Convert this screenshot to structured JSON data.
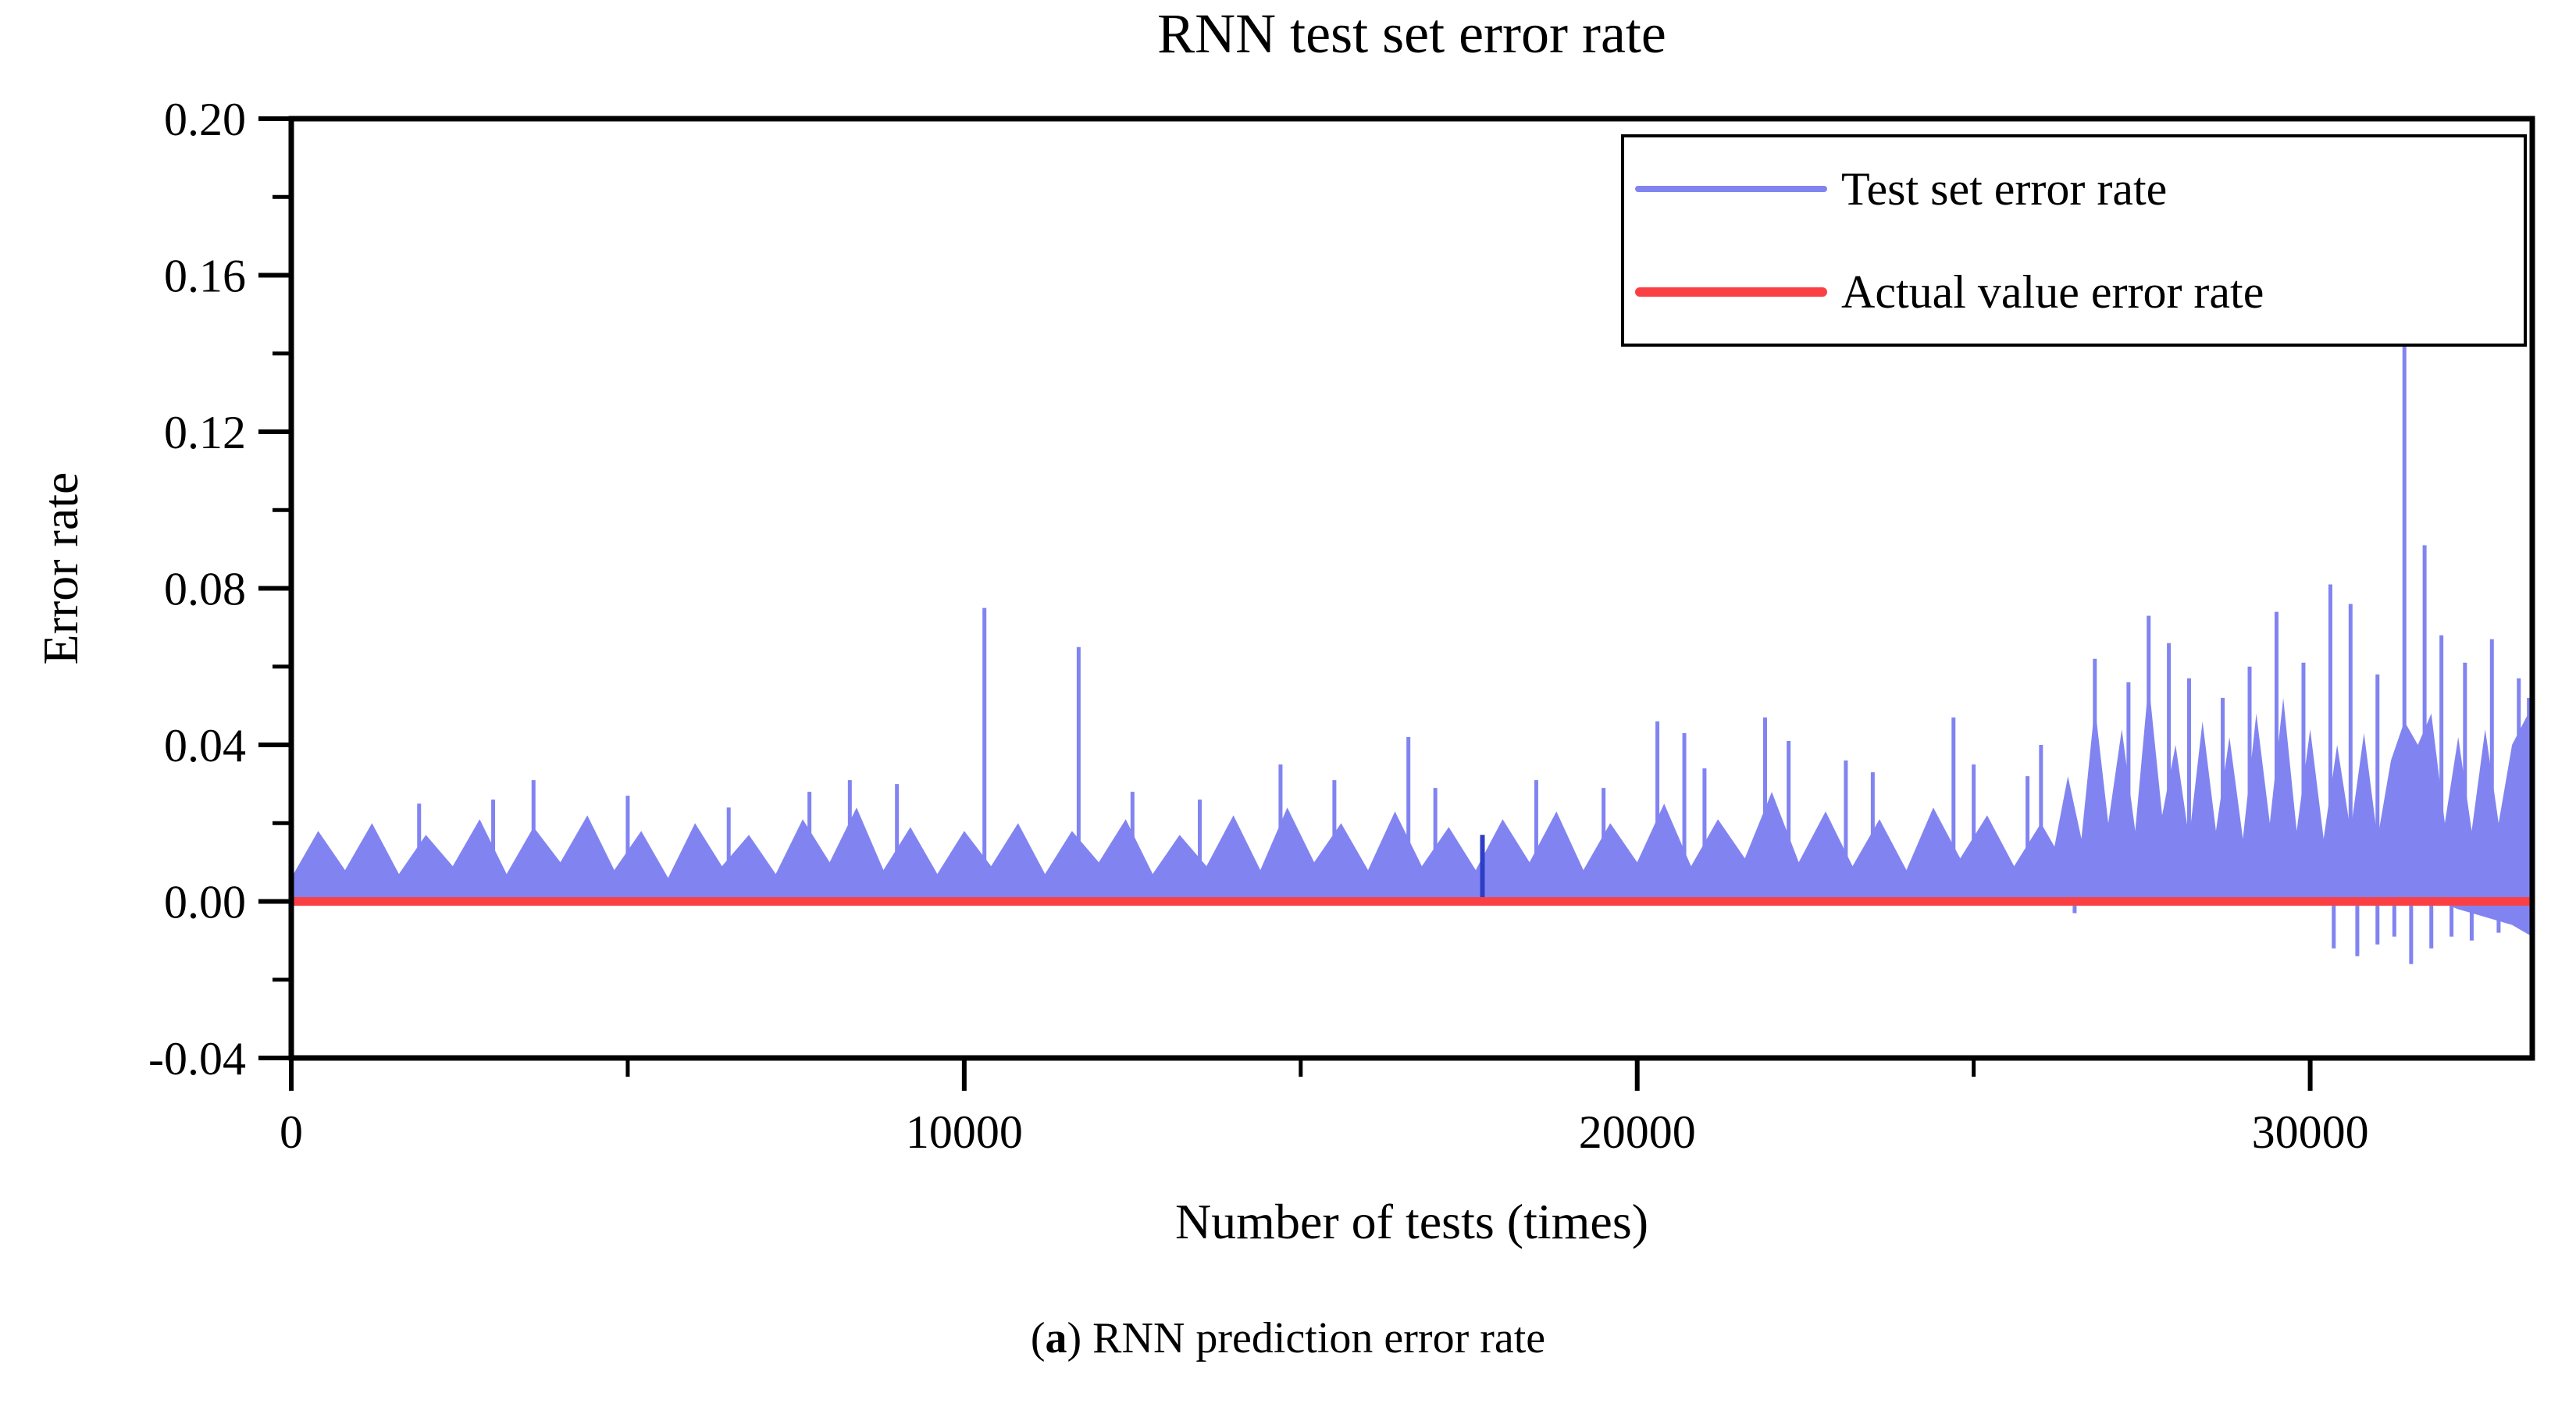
{
  "figure": {
    "title": "RNN test set error rate",
    "x_axis_label": "Number of tests (times)",
    "y_axis_label": "Error rate",
    "caption": {
      "prefix": "(",
      "letter": "a",
      "rest": ") RNN prediction error rate"
    }
  },
  "legend": {
    "position": "top-right",
    "items": [
      {
        "label": "Test set error rate",
        "color": "#8184f0",
        "line_thickness": 8
      },
      {
        "label": "Actual value error rate",
        "color": "#fb4045",
        "line_thickness": 12
      }
    ]
  },
  "colors": {
    "axis": "#000000",
    "background": "#ffffff",
    "test_series_blue": "#8184f0",
    "dark_spike_blue": "#2e3ec6",
    "actual_red": "#fb4045"
  },
  "chart_data": {
    "type": "line",
    "title": "RNN test set error rate",
    "xlabel": "Number of tests (times)",
    "ylabel": "Error rate",
    "xlim": [
      0,
      33300
    ],
    "ylim": [
      -0.04,
      0.2
    ],
    "grid": false,
    "legend_position": "top-right",
    "xticks": [
      {
        "v": 0,
        "label": "0"
      },
      {
        "v": 10000,
        "label": "10000"
      },
      {
        "v": 20000,
        "label": "20000"
      },
      {
        "v": 30000,
        "label": "30000"
      }
    ],
    "xticks_minor": [
      5000,
      15000,
      25000
    ],
    "yticks": [
      {
        "v": 0.2,
        "label": "0.20"
      },
      {
        "v": 0.16,
        "label": "0.16"
      },
      {
        "v": 0.12,
        "label": "0.12"
      },
      {
        "v": 0.08,
        "label": "0.08"
      },
      {
        "v": 0.04,
        "label": "0.04"
      },
      {
        "v": 0.0,
        "label": "0.00"
      },
      {
        "v": -0.04,
        "label": "-0.04"
      }
    ],
    "yticks_minor": [
      0.18,
      0.14,
      0.1,
      0.06,
      0.02,
      -0.02
    ],
    "series": [
      {
        "name": "Test set error rate",
        "color": "#8184f0",
        "line_width": 5,
        "representation": "envelope of ~33000-point noisy error-rate line; mostly 0.005-0.03, rising variance after 26000, max spike ~0.15 near 31400, small negative dips near right end",
        "upper_envelope": [
          [
            0,
            0.006
          ],
          [
            400,
            0.018
          ],
          [
            800,
            0.008
          ],
          [
            1200,
            0.02
          ],
          [
            1600,
            0.007
          ],
          [
            2000,
            0.017
          ],
          [
            2400,
            0.009
          ],
          [
            2800,
            0.021
          ],
          [
            3200,
            0.007
          ],
          [
            3600,
            0.019
          ],
          [
            4000,
            0.01
          ],
          [
            4400,
            0.022
          ],
          [
            4800,
            0.008
          ],
          [
            5200,
            0.018
          ],
          [
            5600,
            0.006
          ],
          [
            6000,
            0.02
          ],
          [
            6400,
            0.009
          ],
          [
            6800,
            0.017
          ],
          [
            7200,
            0.007
          ],
          [
            7600,
            0.021
          ],
          [
            8000,
            0.01
          ],
          [
            8400,
            0.024
          ],
          [
            8800,
            0.008
          ],
          [
            9200,
            0.019
          ],
          [
            9600,
            0.007
          ],
          [
            10000,
            0.018
          ],
          [
            10400,
            0.009
          ],
          [
            10800,
            0.02
          ],
          [
            11200,
            0.007
          ],
          [
            11600,
            0.018
          ],
          [
            12000,
            0.01
          ],
          [
            12400,
            0.021
          ],
          [
            12800,
            0.007
          ],
          [
            13200,
            0.017
          ],
          [
            13600,
            0.009
          ],
          [
            14000,
            0.022
          ],
          [
            14400,
            0.008
          ],
          [
            14800,
            0.024
          ],
          [
            15200,
            0.01
          ],
          [
            15600,
            0.02
          ],
          [
            16000,
            0.008
          ],
          [
            16400,
            0.023
          ],
          [
            16800,
            0.009
          ],
          [
            17200,
            0.019
          ],
          [
            17600,
            0.008
          ],
          [
            18000,
            0.021
          ],
          [
            18400,
            0.01
          ],
          [
            18800,
            0.023
          ],
          [
            19200,
            0.008
          ],
          [
            19600,
            0.02
          ],
          [
            20000,
            0.01
          ],
          [
            20400,
            0.025
          ],
          [
            20800,
            0.009
          ],
          [
            21200,
            0.021
          ],
          [
            21600,
            0.011
          ],
          [
            22000,
            0.028
          ],
          [
            22400,
            0.01
          ],
          [
            22800,
            0.023
          ],
          [
            23200,
            0.009
          ],
          [
            23600,
            0.021
          ],
          [
            24000,
            0.008
          ],
          [
            24400,
            0.024
          ],
          [
            24800,
            0.011
          ],
          [
            25200,
            0.022
          ],
          [
            25600,
            0.009
          ],
          [
            26000,
            0.02
          ],
          [
            26200,
            0.014
          ],
          [
            26400,
            0.032
          ],
          [
            26600,
            0.016
          ],
          [
            26800,
            0.05
          ],
          [
            27000,
            0.02
          ],
          [
            27200,
            0.044
          ],
          [
            27400,
            0.018
          ],
          [
            27600,
            0.056
          ],
          [
            27800,
            0.022
          ],
          [
            28000,
            0.04
          ],
          [
            28200,
            0.016
          ],
          [
            28400,
            0.046
          ],
          [
            28600,
            0.018
          ],
          [
            28800,
            0.042
          ],
          [
            29000,
            0.016
          ],
          [
            29200,
            0.048
          ],
          [
            29400,
            0.02
          ],
          [
            29600,
            0.052
          ],
          [
            29800,
            0.018
          ],
          [
            30000,
            0.044
          ],
          [
            30200,
            0.016
          ],
          [
            30400,
            0.04
          ],
          [
            30600,
            0.018
          ],
          [
            30800,
            0.043
          ],
          [
            31000,
            0.016
          ],
          [
            31200,
            0.036
          ],
          [
            31400,
            0.046
          ],
          [
            31600,
            0.04
          ],
          [
            31800,
            0.048
          ],
          [
            32000,
            0.02
          ],
          [
            32200,
            0.042
          ],
          [
            32400,
            0.018
          ],
          [
            32600,
            0.044
          ],
          [
            32800,
            0.02
          ],
          [
            33000,
            0.04
          ],
          [
            33300,
            0.05
          ]
        ],
        "lower_envelope": [
          [
            0,
            0
          ],
          [
            31900,
            0
          ],
          [
            32200,
            -0.002
          ],
          [
            32600,
            -0.004
          ],
          [
            33000,
            -0.006
          ],
          [
            33300,
            -0.009
          ]
        ],
        "spikes": [
          [
            1900,
            0.025
          ],
          [
            3000,
            0.026
          ],
          [
            3600,
            0.031
          ],
          [
            5000,
            0.027
          ],
          [
            6500,
            0.024
          ],
          [
            7700,
            0.028
          ],
          [
            8300,
            0.031
          ],
          [
            9000,
            0.03
          ],
          [
            10300,
            0.075
          ],
          [
            11700,
            0.065
          ],
          [
            12500,
            0.028
          ],
          [
            13500,
            0.026
          ],
          [
            14700,
            0.035
          ],
          [
            15500,
            0.031
          ],
          [
            16600,
            0.042
          ],
          [
            17000,
            0.029
          ],
          [
            18500,
            0.031
          ],
          [
            19500,
            0.029
          ],
          [
            20300,
            0.046
          ],
          [
            20700,
            0.043
          ],
          [
            21000,
            0.034
          ],
          [
            21900,
            0.047
          ],
          [
            22250,
            0.041
          ],
          [
            23100,
            0.036
          ],
          [
            23500,
            0.033
          ],
          [
            24700,
            0.047
          ],
          [
            25000,
            0.035
          ],
          [
            25800,
            0.032
          ],
          [
            26000,
            0.04
          ],
          [
            26800,
            0.062
          ],
          [
            27300,
            0.056
          ],
          [
            27600,
            0.073
          ],
          [
            27900,
            0.066
          ],
          [
            28200,
            0.057
          ],
          [
            28700,
            0.052
          ],
          [
            29100,
            0.06
          ],
          [
            29500,
            0.074
          ],
          [
            29900,
            0.061
          ],
          [
            30300,
            0.081
          ],
          [
            30600,
            0.076
          ],
          [
            31000,
            0.058
          ],
          [
            31400,
            0.15
          ],
          [
            31700,
            0.091
          ],
          [
            31950,
            0.068
          ],
          [
            32300,
            0.061
          ],
          [
            32700,
            0.067
          ],
          [
            33100,
            0.057
          ],
          [
            33250,
            0.052
          ]
        ],
        "negative_spikes": [
          [
            26500,
            -0.003
          ],
          [
            30350,
            -0.012
          ],
          [
            30700,
            -0.014
          ],
          [
            31000,
            -0.011
          ],
          [
            31250,
            -0.009
          ],
          [
            31500,
            -0.016
          ],
          [
            31800,
            -0.012
          ],
          [
            32100,
            -0.009
          ],
          [
            32400,
            -0.01
          ],
          [
            32800,
            -0.008
          ]
        ],
        "dark_spike": {
          "x": 17700,
          "y": 0.017,
          "color": "#2e3ec6"
        }
      },
      {
        "name": "Actual value error rate",
        "type": "hline",
        "y": 0,
        "color": "#fb4045",
        "line_width": 11
      }
    ]
  }
}
